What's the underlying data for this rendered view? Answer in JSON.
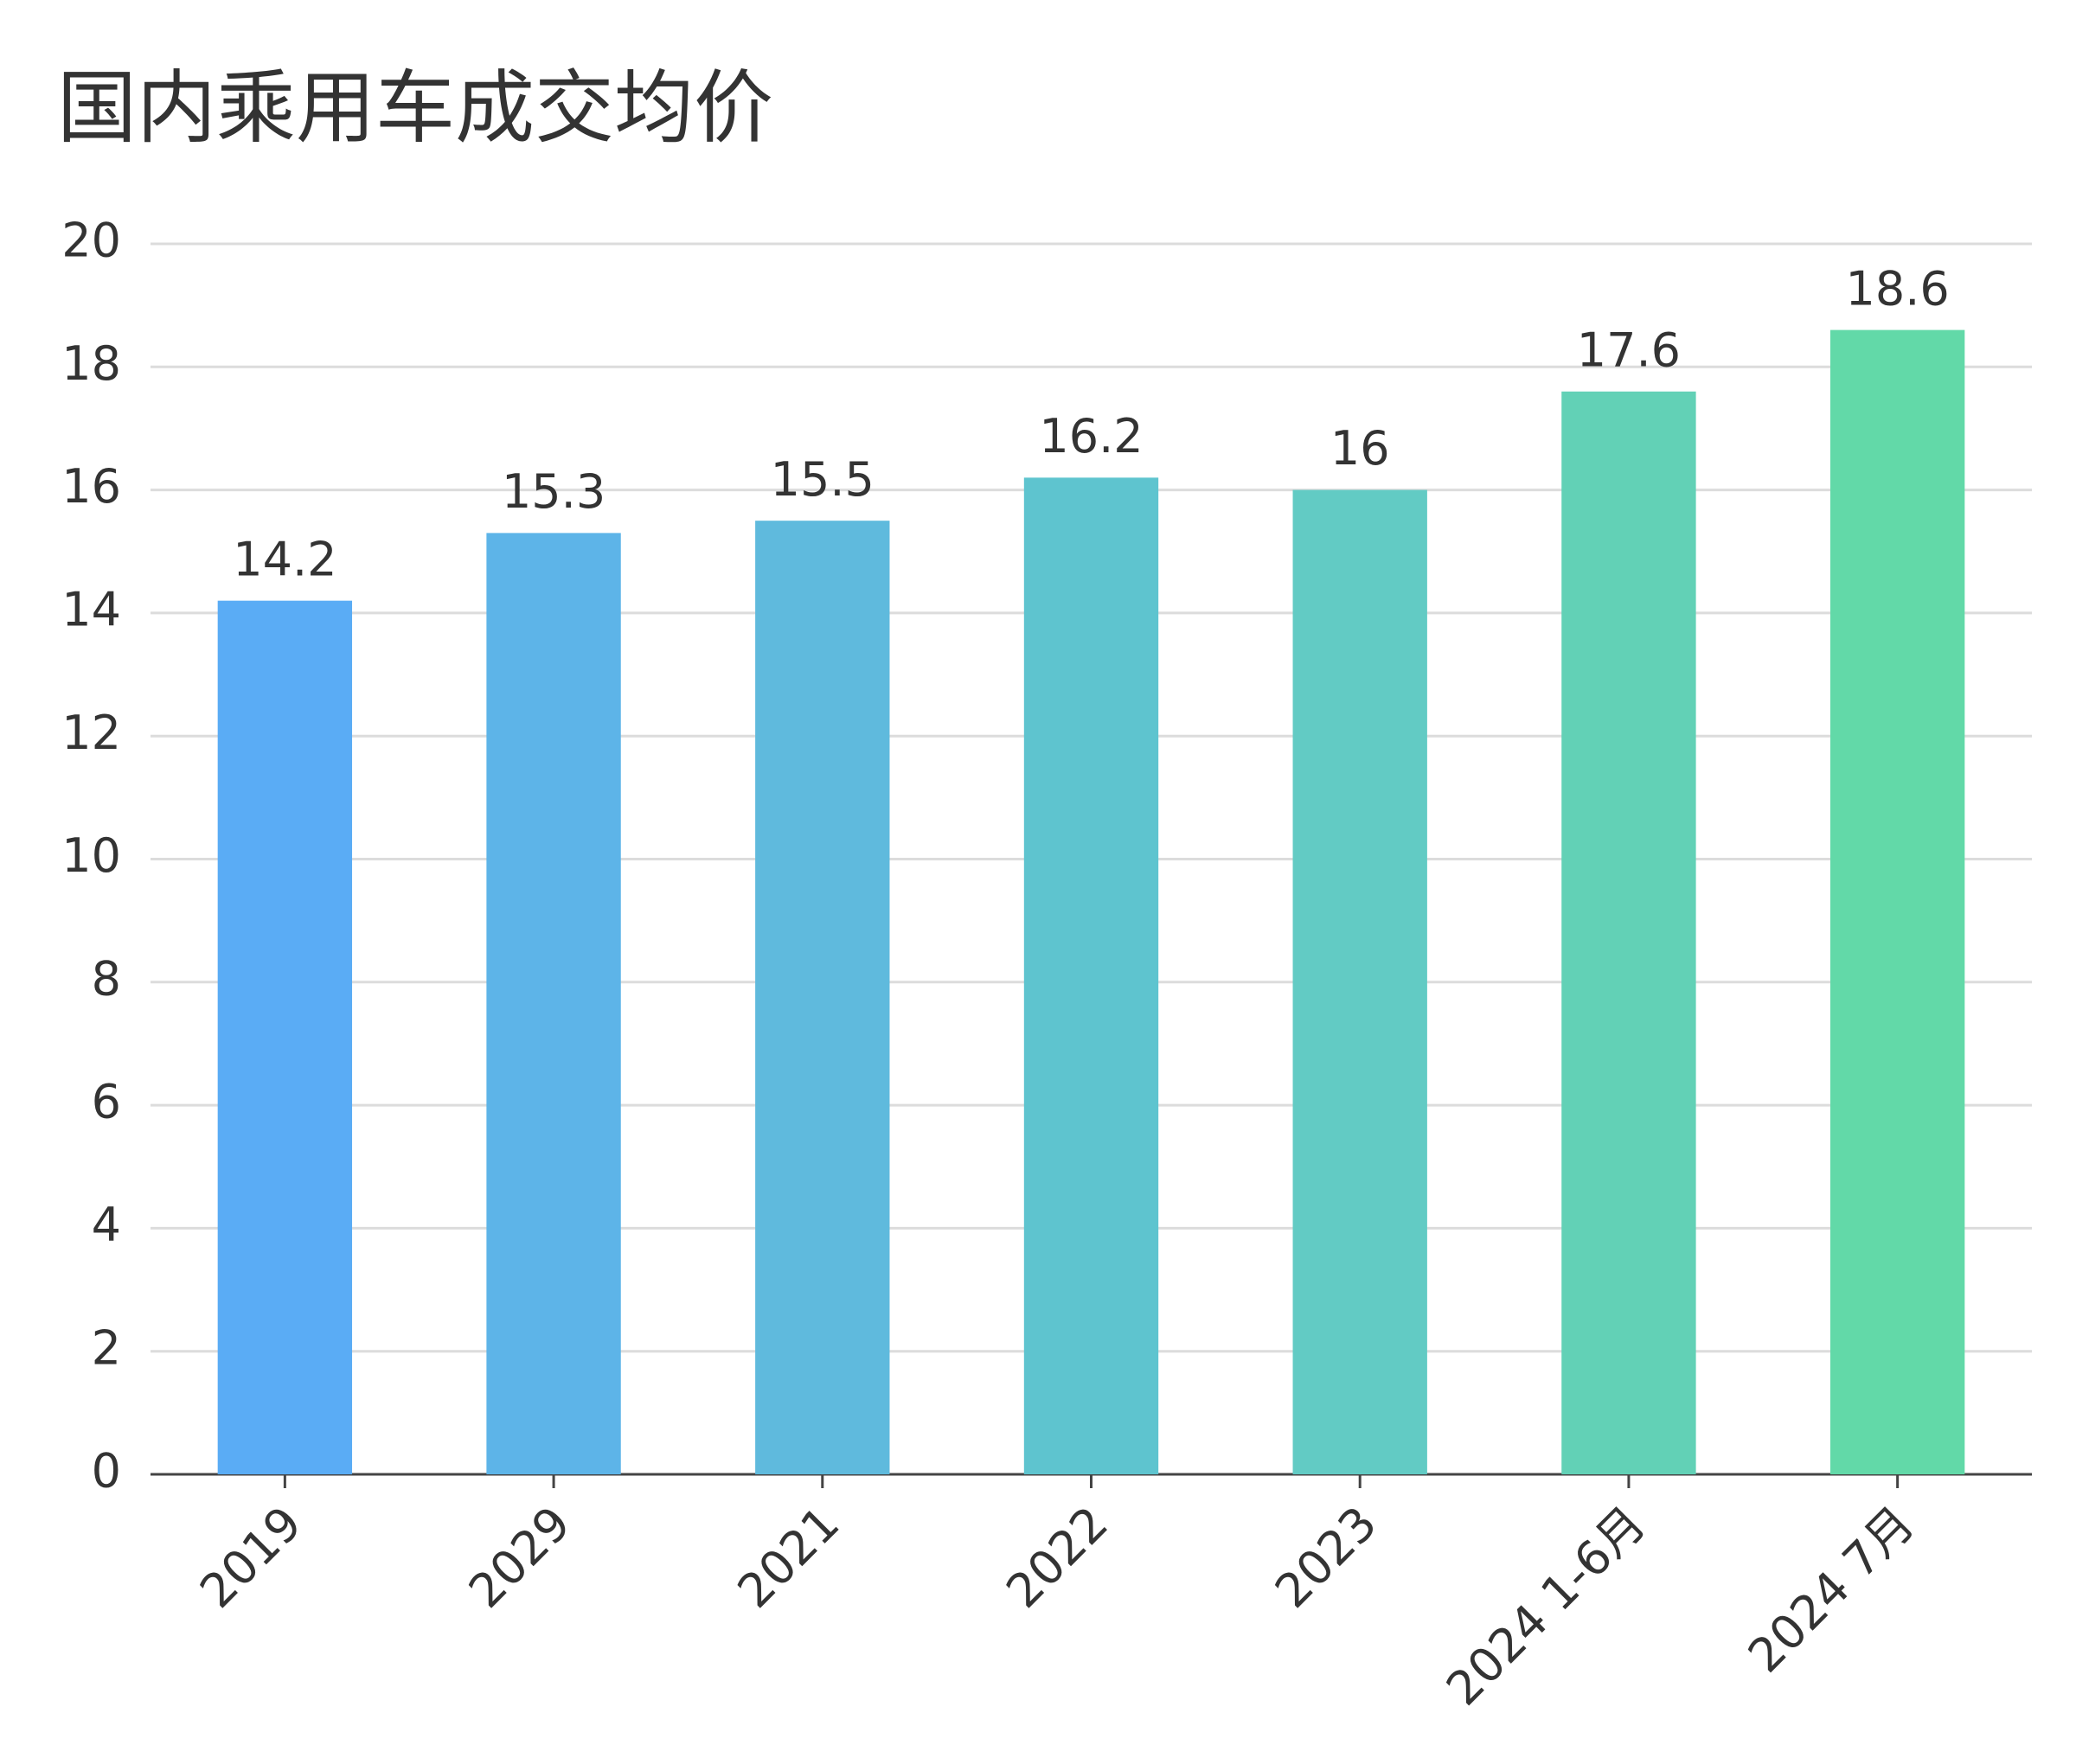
{
  "chart_data": {
    "type": "bar",
    "title": "国内乘用车成交均价",
    "categories": [
      "2019",
      "2029",
      "2021",
      "2022",
      "2023",
      "2024 1-6月",
      "2024 7月"
    ],
    "values": [
      14.2,
      15.3,
      15.5,
      16.2,
      16,
      17.6,
      18.6
    ],
    "colors": [
      "#5aacf5",
      "#5db4e8",
      "#5fbadd",
      "#5ec4cf",
      "#62cbc4",
      "#62d1b6",
      "#62d9a8"
    ],
    "ylim": [
      0,
      20
    ],
    "yticks": [
      0,
      2,
      4,
      6,
      8,
      10,
      12,
      14,
      16,
      18,
      20
    ],
    "grid": true
  }
}
